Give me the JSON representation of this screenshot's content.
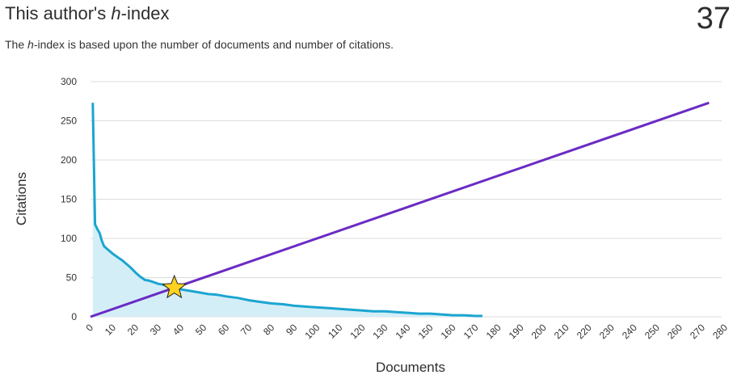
{
  "header": {
    "title_prefix": "This author's ",
    "title_h": "h",
    "title_suffix": "-index",
    "h_index": "37",
    "subtitle_prefix": "The ",
    "subtitle_h": "h",
    "subtitle_suffix": "-index is based upon the number of documents and number of citations."
  },
  "colors": {
    "citations_line": "#1ba5d0",
    "citations_fill": "#d4eef7",
    "h_line": "#6a2bc4",
    "star_fill": "#ffd21f",
    "grid": "#dcdcdc"
  },
  "chart_data": {
    "type": "line",
    "xlabel": "Documents",
    "ylabel": "Citations",
    "xlim": [
      0,
      280
    ],
    "ylim": [
      0,
      300
    ],
    "x_ticks": [
      0,
      10,
      20,
      30,
      40,
      50,
      60,
      70,
      80,
      90,
      100,
      110,
      120,
      130,
      140,
      150,
      160,
      170,
      180,
      190,
      200,
      210,
      220,
      230,
      240,
      250,
      260,
      270,
      280
    ],
    "y_ticks": [
      0,
      50,
      100,
      150,
      200,
      250,
      300
    ],
    "grid": true,
    "series": [
      {
        "points": [
          [
            1,
            273
          ],
          [
            2,
            118
          ],
          [
            3,
            112
          ],
          [
            4,
            107
          ],
          [
            5,
            97
          ],
          [
            6,
            90
          ],
          [
            8,
            85
          ],
          [
            10,
            80
          ],
          [
            12,
            76
          ],
          [
            14,
            72
          ],
          [
            16,
            67
          ],
          [
            18,
            62
          ],
          [
            20,
            56
          ],
          [
            22,
            51
          ],
          [
            24,
            47
          ],
          [
            26,
            46
          ],
          [
            28,
            44
          ],
          [
            30,
            42
          ],
          [
            32,
            41
          ],
          [
            34,
            39
          ],
          [
            36,
            38
          ],
          [
            37,
            37
          ],
          [
            40,
            35
          ],
          [
            44,
            33
          ],
          [
            48,
            31
          ],
          [
            52,
            29
          ],
          [
            56,
            28
          ],
          [
            60,
            26
          ],
          [
            65,
            24
          ],
          [
            70,
            21
          ],
          [
            75,
            19
          ],
          [
            80,
            17
          ],
          [
            85,
            16
          ],
          [
            90,
            14
          ],
          [
            95,
            13
          ],
          [
            100,
            12
          ],
          [
            105,
            11
          ],
          [
            110,
            10
          ],
          [
            115,
            9
          ],
          [
            120,
            8
          ],
          [
            125,
            7
          ],
          [
            130,
            7
          ],
          [
            135,
            6
          ],
          [
            140,
            5
          ],
          [
            145,
            4
          ],
          [
            150,
            4
          ],
          [
            155,
            3
          ],
          [
            160,
            2
          ],
          [
            165,
            2
          ],
          [
            170,
            1
          ],
          [
            173,
            1
          ]
        ]
      },
      {
        "points": [
          [
            0,
            0
          ],
          [
            273,
            273
          ]
        ]
      }
    ],
    "h_index_point": [
      37,
      37
    ]
  }
}
